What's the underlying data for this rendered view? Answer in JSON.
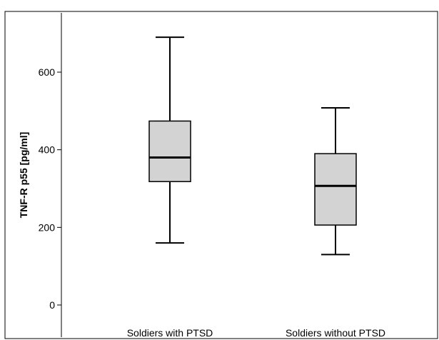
{
  "chart_data": {
    "type": "boxplot",
    "ylabel": "TNF-R p55 [pg/ml]",
    "xlabel": "",
    "ylim": [
      -20,
      740
    ],
    "yticks": [
      0,
      200,
      400,
      600
    ],
    "categories": [
      "Soldiers with PTSD",
      "Soldiers without PTSD"
    ],
    "boxes": [
      {
        "category": "Soldiers with PTSD",
        "min": 160,
        "q1": 318,
        "median": 380,
        "q3": 474,
        "max": 690
      },
      {
        "category": "Soldiers without PTSD",
        "min": 130,
        "q1": 206,
        "median": 307,
        "q3": 390,
        "max": 508
      }
    ],
    "colors": {
      "box_fill": "#d3d3d3",
      "stroke": "#000000",
      "background": "#ffffff"
    },
    "grid": false
  }
}
